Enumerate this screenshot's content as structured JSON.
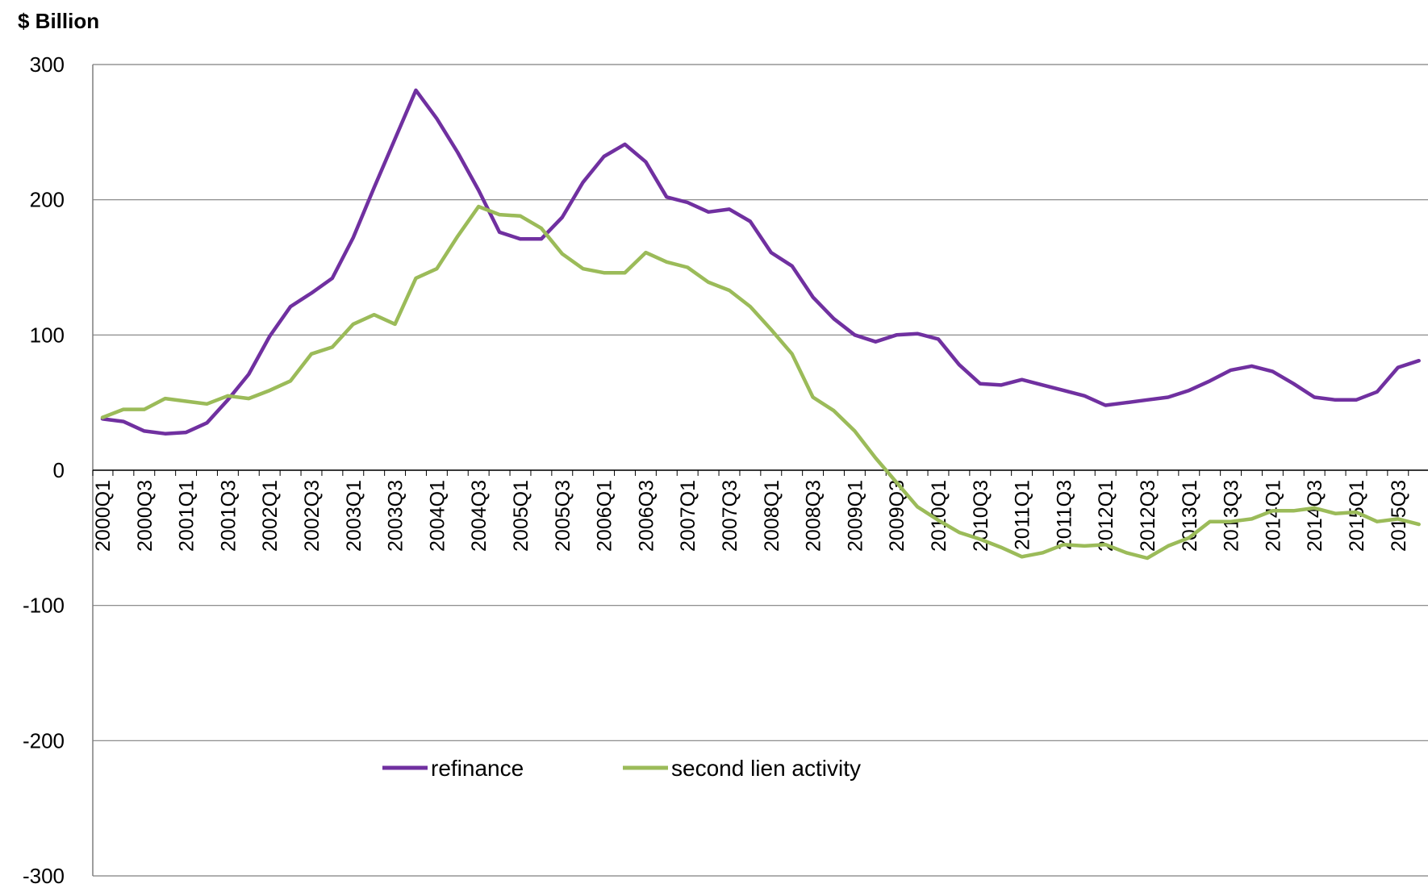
{
  "chart_data": {
    "type": "line",
    "title": "",
    "unit_label": "$ Billion",
    "ylim": [
      -300,
      300
    ],
    "yticks": [
      300,
      200,
      100,
      0,
      -100,
      -200,
      -300
    ],
    "grid": true,
    "legend_position": "bottom-center",
    "x": [
      "2000Q1",
      "2000Q2",
      "2000Q3",
      "2000Q4",
      "2001Q1",
      "2001Q2",
      "2001Q3",
      "2001Q4",
      "2002Q1",
      "2002Q2",
      "2002Q3",
      "2002Q4",
      "2003Q1",
      "2003Q2",
      "2003Q3",
      "2003Q4",
      "2004Q1",
      "2004Q2",
      "2004Q3",
      "2004Q4",
      "2005Q1",
      "2005Q2",
      "2005Q3",
      "2005Q4",
      "2006Q1",
      "2006Q2",
      "2006Q3",
      "2006Q4",
      "2007Q1",
      "2007Q2",
      "2007Q3",
      "2007Q4",
      "2008Q1",
      "2008Q2",
      "2008Q3",
      "2008Q4",
      "2009Q1",
      "2009Q2",
      "2009Q3",
      "2009Q4",
      "2010Q1",
      "2010Q2",
      "2010Q3",
      "2010Q4",
      "2011Q1",
      "2011Q2",
      "2011Q3",
      "2011Q4",
      "2012Q1",
      "2012Q2",
      "2012Q3",
      "2012Q4",
      "2013Q1",
      "2013Q2",
      "2013Q3",
      "2013Q4",
      "2014Q1",
      "2014Q2",
      "2014Q3",
      "2014Q4",
      "2015Q1",
      "2015Q2",
      "2015Q3",
      "2015Q4"
    ],
    "x_tick_labels": [
      "2000Q1",
      "2000Q3",
      "2001Q1",
      "2001Q3",
      "2002Q1",
      "2002Q3",
      "2003Q1",
      "2003Q3",
      "2004Q1",
      "2004Q3",
      "2005Q1",
      "2005Q3",
      "2006Q1",
      "2006Q3",
      "2007Q1",
      "2007Q3",
      "2008Q1",
      "2008Q3",
      "2009Q1",
      "2009Q3",
      "2010Q1",
      "2010Q3",
      "2011Q1",
      "2011Q3",
      "2012Q1",
      "2012Q3",
      "2013Q1",
      "2013Q3",
      "2014Q1",
      "2014Q3",
      "2015Q1",
      "2015Q3"
    ],
    "series": [
      {
        "name": "refinance",
        "color": "#7030a0",
        "values": [
          38,
          36,
          29,
          27,
          28,
          35,
          52,
          71,
          99,
          121,
          131,
          142,
          172,
          209,
          245,
          281,
          260,
          235,
          207,
          176,
          171,
          171,
          187,
          213,
          232,
          241,
          228,
          202,
          198,
          191,
          193,
          184,
          161,
          151,
          128,
          112,
          100,
          95,
          100,
          101,
          97,
          78,
          64,
          63,
          67,
          63,
          59,
          55,
          48,
          50,
          52,
          54,
          59,
          66,
          74,
          77,
          73,
          64,
          54,
          52,
          52,
          58,
          76,
          81
        ]
      },
      {
        "name": "second lien activity",
        "color": "#9bbb59",
        "values": [
          39,
          45,
          45,
          53,
          51,
          49,
          55,
          53,
          59,
          66,
          86,
          91,
          108,
          115,
          108,
          142,
          149,
          173,
          195,
          189,
          188,
          179,
          160,
          149,
          146,
          146,
          161,
          154,
          150,
          139,
          133,
          121,
          104,
          86,
          54,
          44,
          29,
          9,
          -9,
          -27,
          -37,
          -46,
          -51,
          -57,
          -64,
          -61,
          -55,
          -56,
          -55,
          -61,
          -65,
          -56,
          -50,
          -38,
          -38,
          -36,
          -30,
          -30,
          -28,
          -32,
          -31,
          -38,
          -36,
          -40
        ]
      }
    ]
  }
}
